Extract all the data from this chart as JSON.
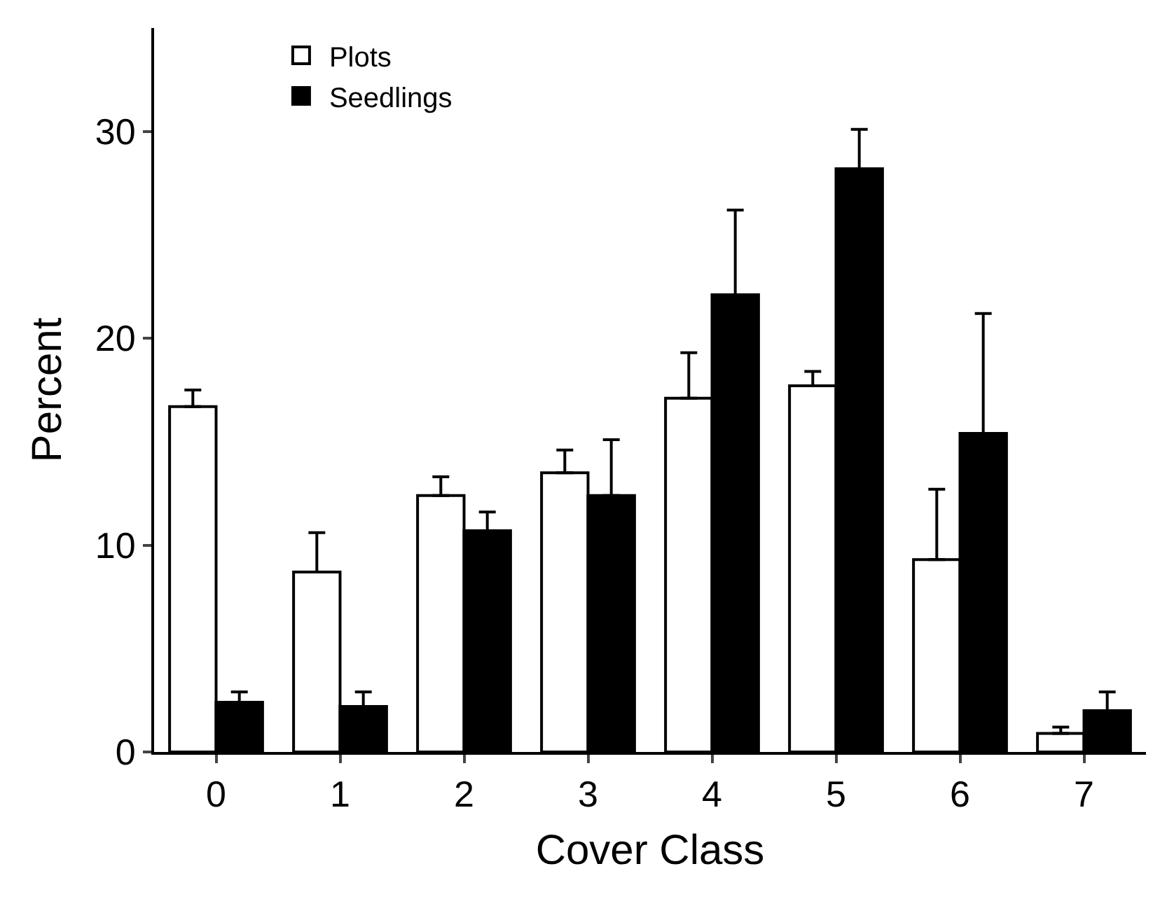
{
  "chart_data": {
    "type": "bar",
    "xlabel": "Cover Class",
    "ylabel": "Percent",
    "categories": [
      "0",
      "1",
      "2",
      "3",
      "4",
      "5",
      "6",
      "7"
    ],
    "series": [
      {
        "name": "Plots",
        "color": "#ffffff",
        "values": [
          16.7,
          8.7,
          12.4,
          13.5,
          17.1,
          17.7,
          9.3,
          0.9
        ],
        "errors": [
          [
            16.7,
            17.5
          ],
          [
            8.7,
            10.6
          ],
          [
            12.4,
            13.3
          ],
          [
            13.5,
            14.6
          ],
          [
            17.1,
            19.3
          ],
          [
            17.7,
            18.4
          ],
          [
            9.3,
            12.7
          ],
          [
            0.9,
            1.2
          ]
        ]
      },
      {
        "name": "Seedlings",
        "color": "#000000",
        "values": [
          2.4,
          2.2,
          10.7,
          12.4,
          22.1,
          28.2,
          15.4,
          2.0
        ],
        "errors": [
          [
            2.4,
            2.9
          ],
          [
            2.2,
            2.9
          ],
          [
            10.7,
            11.6
          ],
          [
            12.4,
            15.1
          ],
          [
            22.1,
            26.2
          ],
          [
            28.2,
            30.1
          ],
          [
            15.4,
            21.2
          ],
          [
            2.0,
            2.9
          ]
        ]
      }
    ],
    "ylim": [
      0,
      35
    ],
    "yticks": [
      0,
      10,
      20,
      30
    ],
    "legend": "top left"
  }
}
